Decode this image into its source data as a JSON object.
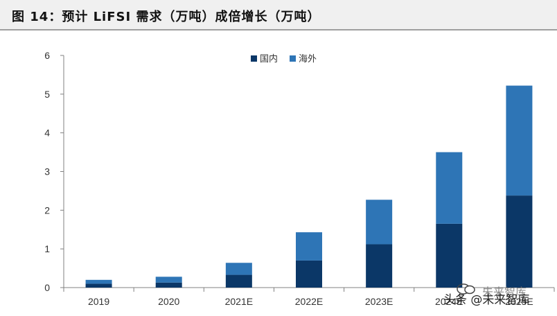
{
  "header": {
    "title": "图 14：预计 LiFSI 需求（万吨）成倍增长（万吨）"
  },
  "watermark": {
    "text": "头条 @未来智库",
    "faint_text": "未来智库"
  },
  "colors": {
    "domestic": "#0b3767",
    "overseas": "#2e75b6",
    "axis": "#808080",
    "tick_text": "#333333"
  },
  "chart_data": {
    "type": "bar",
    "stacked": true,
    "categories": [
      "2019",
      "2020",
      "2021E",
      "2022E",
      "2023E",
      "2024E",
      "2025E"
    ],
    "series": [
      {
        "name": "国内",
        "values": [
          0.1,
          0.13,
          0.33,
          0.7,
          1.12,
          1.65,
          2.38
        ]
      },
      {
        "name": "海外",
        "values": [
          0.1,
          0.15,
          0.31,
          0.73,
          1.15,
          1.85,
          2.84
        ]
      }
    ],
    "yticks": [
      "0",
      "1",
      "2",
      "3",
      "4",
      "5",
      "6"
    ],
    "ylim": [
      0,
      6
    ],
    "xlabel": "",
    "ylabel": "",
    "grid": false,
    "legend_position": "top"
  }
}
